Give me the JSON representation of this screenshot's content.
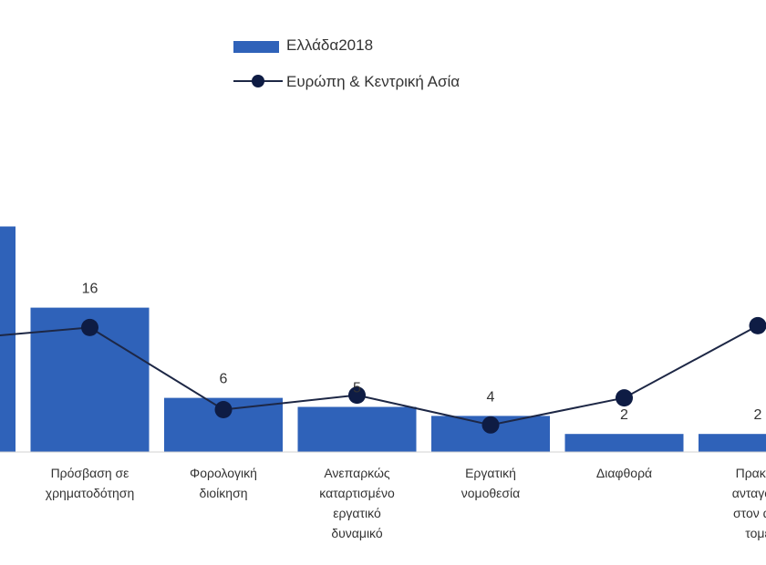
{
  "legend": {
    "bar_series": "Ελλάδα2018",
    "line_series": "Ευρώπη & Κεντρική Ασία"
  },
  "colors": {
    "bar": "#2f62b9",
    "line": "#1d2745",
    "marker": "#0e1c44",
    "text": "#333333"
  },
  "chart_data": {
    "type": "bar",
    "categories": [
      "",
      "Πρόσβαση σε χρηματοδότηση",
      "Φορολογική διοίκηση",
      "Ανεπαρκώς καταρτισμένο εργατικό δυναμικό",
      "Εργατική νομοθεσία",
      "Διαφθορά",
      "Πρακτικ... ανταγων... στον ανε... τομέ..."
    ],
    "category_lines": [
      [
        ""
      ],
      [
        "Πρόσβαση σε",
        "χρηματοδότηση"
      ],
      [
        "Φορολογική",
        "διοίκηση"
      ],
      [
        "Ανεπαρκώς",
        "καταρτισμένο",
        "εργατικό",
        "δυναμικό"
      ],
      [
        "Εργατική",
        "νομοθεσία"
      ],
      [
        "Διαφθορά"
      ],
      [
        "Πρακτικ",
        "ανταγωνι",
        "στον ανε",
        "τομέ"
      ]
    ],
    "series": [
      {
        "name": "Ελλάδα2018",
        "type": "bar",
        "values": [
          25,
          16,
          6,
          5,
          4,
          2,
          2
        ],
        "labels": [
          "",
          "16",
          "6",
          "5",
          "4",
          "2",
          "2"
        ]
      },
      {
        "name": "Ευρώπη & Κεντρική Ασία",
        "type": "line",
        "values": [
          12.5,
          13.8,
          4.7,
          6.3,
          3.0,
          6.0,
          14.0
        ]
      }
    ],
    "ylim": [
      0,
      30
    ],
    "grid": false,
    "legend_position": "top"
  }
}
